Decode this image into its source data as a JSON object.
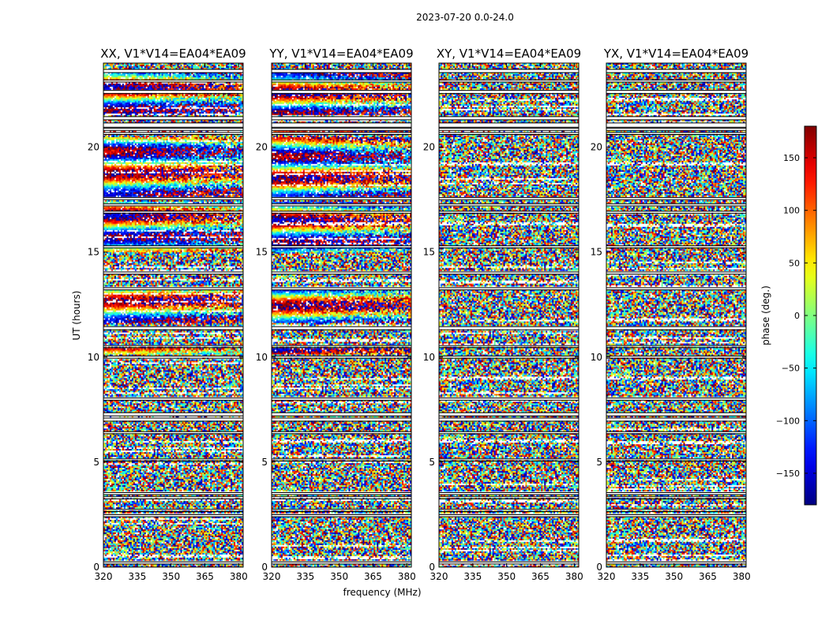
{
  "figure": {
    "suptitle": "2023-07-20 0.0-24.0",
    "xlabel": "frequency (MHz)",
    "ylabel": "UT (hours)",
    "colorbar_label": "phase (deg.)"
  },
  "chart_data": {
    "type": "heatmap",
    "panels": [
      {
        "title": "XX, V1*V14=EA04*EA09",
        "coherent": true
      },
      {
        "title": "YY, V1*V14=EA04*EA09",
        "coherent": true
      },
      {
        "title": "XY, V1*V14=EA04*EA09",
        "coherent": false
      },
      {
        "title": "YX, V1*V14=EA04*EA09",
        "coherent": false
      }
    ],
    "x_ticks": [
      "320",
      "335",
      "350",
      "365",
      "380"
    ],
    "x_tick_values": [
      320,
      335,
      350,
      365,
      380
    ],
    "xlim": [
      320,
      382
    ],
    "y_ticks": [
      "0",
      "5",
      "10",
      "15",
      "20"
    ],
    "y_tick_values": [
      0,
      5,
      10,
      15,
      20
    ],
    "ylim": [
      0,
      24
    ],
    "colorbar": {
      "range": [
        -180,
        180
      ],
      "ticks": [
        "150",
        "100",
        "50",
        "0",
        "−50",
        "−100",
        "−150"
      ],
      "tick_values": [
        150,
        100,
        50,
        0,
        -50,
        -100,
        -150
      ],
      "colormap": "jet"
    },
    "flagged_bands_hours": [
      [
        23.55,
        23.7
      ],
      [
        23.1,
        23.2
      ],
      [
        22.55,
        22.7
      ],
      [
        21.3,
        21.45
      ],
      [
        20.95,
        21.15
      ],
      [
        20.8,
        20.9
      ],
      [
        20.6,
        20.7
      ],
      [
        17.5,
        17.6
      ],
      [
        17.2,
        17.3
      ],
      [
        16.85,
        16.95
      ],
      [
        15.2,
        15.3
      ],
      [
        13.95,
        14.05
      ],
      [
        13.2,
        13.3
      ],
      [
        11.3,
        11.45
      ],
      [
        10.45,
        10.55
      ],
      [
        9.95,
        10.05
      ],
      [
        7.95,
        8.05
      ],
      [
        7.2,
        7.35
      ],
      [
        6.95,
        7.1
      ],
      [
        6.35,
        6.45
      ],
      [
        5.05,
        5.15
      ],
      [
        3.45,
        3.55
      ],
      [
        3.25,
        3.35
      ],
      [
        2.65,
        2.75
      ],
      [
        2.4,
        2.5
      ],
      [
        0.15,
        0.25
      ]
    ],
    "coherent_bands_hours": [
      [
        10.1,
        10.4
      ],
      [
        11.6,
        13.3
      ],
      [
        15.0,
        17.4
      ],
      [
        17.6,
        20.5
      ],
      [
        20.6,
        20.8
      ],
      [
        21.5,
        23.0
      ],
      [
        23.05,
        23.55
      ]
    ]
  }
}
